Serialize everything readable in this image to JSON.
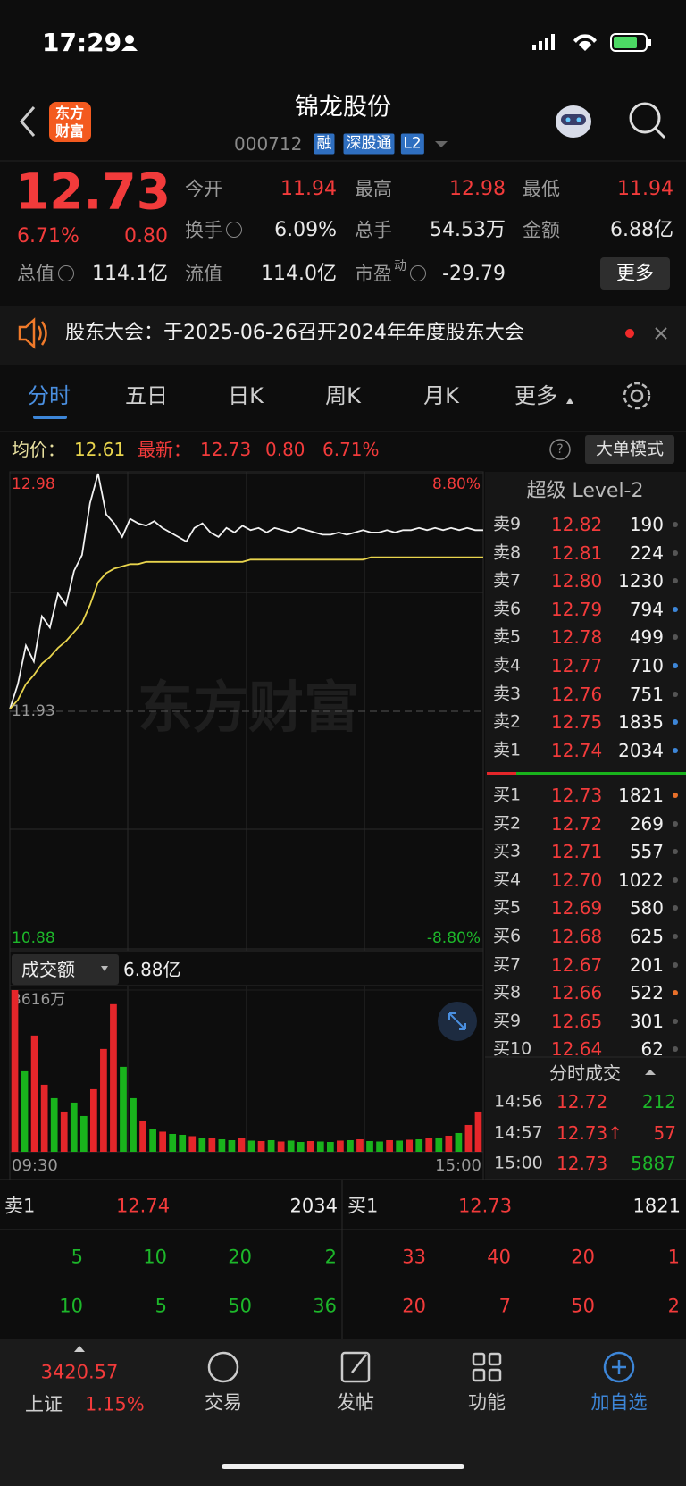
{
  "status_bar": {
    "time": "17:29"
  },
  "header": {
    "logo": [
      "东方",
      "财富"
    ],
    "title": "锦龙股份",
    "code": "000712",
    "tags": [
      "融",
      "深股通",
      "L2"
    ]
  },
  "quote": {
    "price": "12.73",
    "change_pct": "6.71%",
    "change": "0.80",
    "stats": [
      {
        "label": "今开",
        "value": "11.94"
      },
      {
        "label": "最高",
        "value": "12.98"
      },
      {
        "label": "最低",
        "value": "11.94"
      },
      {
        "label": "换手",
        "value": "6.09%"
      },
      {
        "label": "总手",
        "value": "54.53万"
      },
      {
        "label": "金额",
        "value": "6.88亿"
      },
      {
        "label": "总值",
        "value": "114.1亿"
      },
      {
        "label": "流值",
        "value": "114.0亿"
      },
      {
        "label": "市盈",
        "sup": "动",
        "value": "-29.79"
      }
    ],
    "more": "更多"
  },
  "notice": "股东大会：于2025-06-26召开2024年年度股东大会",
  "tabs": [
    "分时",
    "五日",
    "日K",
    "周K",
    "月K",
    "更多"
  ],
  "info_bar": {
    "avg_label": "均价：",
    "avg": "12.61",
    "latest_label": "最新：",
    "latest": "12.73",
    "change": "0.80",
    "change_pct": "6.71%",
    "mode": "大单模式"
  },
  "chart_data": [
    {
      "type": "line",
      "watermark": "东方财富",
      "ylim": [
        10.88,
        12.98
      ],
      "yticks": [
        12.98,
        11.93,
        10.88
      ],
      "y2lim": [
        -8.8,
        8.8
      ],
      "y2ticks": [
        {
          "value": 8.8,
          "label": "8.80%"
        },
        {
          "value": -8.8,
          "label": "-8.80%"
        }
      ],
      "series": [
        {
          "color": "#f2f2f2",
          "values": [
            11.94,
            12.05,
            12.22,
            12.15,
            12.35,
            12.3,
            12.45,
            12.4,
            12.55,
            12.62,
            12.85,
            12.98,
            12.8,
            12.76,
            12.7,
            12.78,
            12.76,
            12.75,
            12.77,
            12.74,
            12.72,
            12.7,
            12.68,
            12.74,
            12.76,
            12.72,
            12.7,
            12.74,
            12.72,
            12.75,
            12.73,
            12.74,
            12.72,
            12.74,
            12.73,
            12.72,
            12.74,
            12.73,
            12.72,
            12.71,
            12.71,
            12.72,
            12.71,
            12.72,
            12.73,
            12.72,
            12.72,
            12.73,
            12.72,
            12.73,
            12.73,
            12.74,
            12.73,
            12.74,
            12.73,
            12.74,
            12.73,
            12.74,
            12.73,
            12.73
          ]
        },
        {
          "color": "#e8d44d",
          "values": [
            11.94,
            11.98,
            12.05,
            12.09,
            12.14,
            12.17,
            12.21,
            12.24,
            12.28,
            12.32,
            12.4,
            12.5,
            12.54,
            12.56,
            12.57,
            12.58,
            12.58,
            12.59,
            12.59,
            12.59,
            12.59,
            12.59,
            12.59,
            12.59,
            12.59,
            12.59,
            12.59,
            12.59,
            12.59,
            12.59,
            12.6,
            12.6,
            12.6,
            12.6,
            12.6,
            12.6,
            12.6,
            12.6,
            12.6,
            12.6,
            12.6,
            12.6,
            12.6,
            12.6,
            12.6,
            12.61,
            12.61,
            12.61,
            12.61,
            12.61,
            12.61,
            12.61,
            12.61,
            12.61,
            12.61,
            12.61,
            12.61,
            12.61,
            12.61,
            12.61
          ]
        }
      ]
    },
    {
      "type": "bar",
      "metric": "成交额",
      "total": "6.88亿",
      "x_labels": [
        "09:30",
        "15:00"
      ],
      "ylim": [
        0,
        3616
      ],
      "yticks": [
        {
          "value": 3616,
          "label": "3616万"
        }
      ],
      "series": [
        {
          "color": "#e5262a",
          "values": [
            3616,
            null,
            2600,
            1500,
            null,
            900,
            null,
            null,
            1400,
            2300,
            3300,
            null,
            null,
            700,
            null,
            450,
            null,
            null,
            350,
            null,
            320,
            null,
            null,
            300,
            null,
            240,
            null,
            230,
            null,
            null,
            240,
            null,
            null,
            250,
            null,
            280,
            null,
            null,
            260,
            null,
            270,
            null,
            300,
            null,
            360,
            null,
            600,
            900
          ]
        },
        {
          "color": "#19b31c",
          "values": [
            null,
            1800,
            null,
            null,
            1200,
            null,
            1100,
            800,
            null,
            null,
            null,
            1900,
            1200,
            null,
            500,
            null,
            400,
            380,
            null,
            300,
            null,
            280,
            260,
            null,
            250,
            null,
            260,
            null,
            250,
            220,
            null,
            230,
            220,
            null,
            260,
            null,
            240,
            230,
            null,
            250,
            null,
            280,
            null,
            320,
            null,
            420,
            null,
            null
          ]
        }
      ]
    }
  ],
  "order_book": {
    "title": "超级 Level-2",
    "asks": [
      {
        "label": "卖9",
        "price": "12.82",
        "volume": "190",
        "dot": "#555555"
      },
      {
        "label": "卖8",
        "price": "12.81",
        "volume": "224",
        "dot": "#555555"
      },
      {
        "label": "卖7",
        "price": "12.80",
        "volume": "1230",
        "dot": "#555555"
      },
      {
        "label": "卖6",
        "price": "12.79",
        "volume": "794",
        "dot": "#3d86d8"
      },
      {
        "label": "卖5",
        "price": "12.78",
        "volume": "499",
        "dot": "#555555"
      },
      {
        "label": "卖4",
        "price": "12.77",
        "volume": "710",
        "dot": "#3d86d8"
      },
      {
        "label": "卖3",
        "price": "12.76",
        "volume": "751",
        "dot": "#555555"
      },
      {
        "label": "卖2",
        "price": "12.75",
        "volume": "1835",
        "dot": "#3d86d8"
      },
      {
        "label": "卖1",
        "price": "12.74",
        "volume": "2034",
        "dot": "#3d86d8"
      }
    ],
    "bids": [
      {
        "label": "买1",
        "price": "12.73",
        "volume": "1821",
        "dot": "#e8702a"
      },
      {
        "label": "买2",
        "price": "12.72",
        "volume": "269",
        "dot": "#555555"
      },
      {
        "label": "买3",
        "price": "12.71",
        "volume": "557",
        "dot": "#555555"
      },
      {
        "label": "买4",
        "price": "12.70",
        "volume": "1022",
        "dot": "#555555"
      },
      {
        "label": "买5",
        "price": "12.69",
        "volume": "580",
        "dot": "#555555"
      },
      {
        "label": "买6",
        "price": "12.68",
        "volume": "625",
        "dot": "#555555"
      },
      {
        "label": "买7",
        "price": "12.67",
        "volume": "201",
        "dot": "#555555"
      },
      {
        "label": "买8",
        "price": "12.66",
        "volume": "522",
        "dot": "#e8702a"
      },
      {
        "label": "买9",
        "price": "12.65",
        "volume": "301",
        "dot": "#555555"
      },
      {
        "label": "买10",
        "price": "12.64",
        "volume": "62",
        "dot": "#555555"
      }
    ]
  },
  "trades": {
    "title": "分时成交",
    "rows": [
      {
        "time": "14:56",
        "price": "12.72",
        "volume": "212",
        "volume_color": "#1db72a"
      },
      {
        "time": "14:57",
        "price": "12.73↑",
        "volume": "57",
        "volume_color": "#f23b3b"
      },
      {
        "time": "15:00",
        "price": "12.73",
        "volume": "5887",
        "volume_color": "#1db72a"
      }
    ]
  },
  "level1": {
    "ask": {
      "label": "卖1",
      "price": "12.74",
      "volume": "2034",
      "orders": [
        [
          "5",
          "10",
          "20",
          "2"
        ],
        [
          "10",
          "5",
          "50",
          "36"
        ]
      ]
    },
    "bid": {
      "label": "买1",
      "price": "12.73",
      "volume": "1821",
      "orders": [
        [
          "33",
          "40",
          "20",
          "1"
        ],
        [
          "20",
          "7",
          "50",
          "2"
        ]
      ]
    }
  },
  "bottom_nav": {
    "index_value": "3420.57",
    "index_name": "上证",
    "index_change": "1.15%",
    "items": [
      "交易",
      "发帖",
      "功能",
      "加自选"
    ]
  }
}
